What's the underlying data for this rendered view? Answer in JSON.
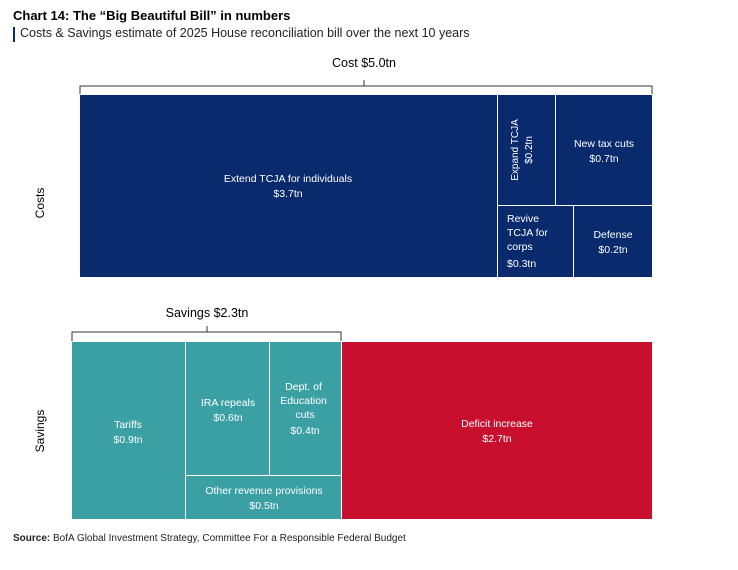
{
  "header": {
    "title": "Chart 14: The “Big Beautiful Bill” in numbers",
    "subtitle": "Costs & Savings estimate of 2025 House reconciliation bill over the next 10 years"
  },
  "footer": {
    "source_label": "Source:",
    "source_text": "BofA Global Investment Strategy, Committee For a Responsible Federal Budget"
  },
  "chart_data": {
    "type": "treemap",
    "units": "$tn",
    "colors": {
      "cost": "#0a2a6e",
      "saving": "#3aa0a3",
      "deficit": "#c8102e"
    },
    "costs": {
      "axis_label": "Costs",
      "total_label": "Cost $5.0tn",
      "total": 5.0,
      "items": [
        {
          "label": "Extend TCJA for individuals",
          "value_label": "$3.7tn",
          "value": 3.7
        },
        {
          "label": "Expand TCJA",
          "value_label": "$0.2tn",
          "value": 0.2
        },
        {
          "label": "New tax cuts",
          "value_label": "$0.7tn",
          "value": 0.7
        },
        {
          "label": "Revive TCJA for corps",
          "value_label": "$0.3tn",
          "value": 0.3
        },
        {
          "label": "Defense",
          "value_label": "$0.2tn",
          "value": 0.2
        }
      ]
    },
    "savings": {
      "axis_label": "Savings",
      "total_label": "Savings $2.3tn",
      "total": 2.3,
      "items": [
        {
          "label": "Tariffs",
          "value_label": "$0.9tn",
          "value": 0.9
        },
        {
          "label": "IRA repeals",
          "value_label": "$0.6tn",
          "value": 0.6
        },
        {
          "label": "Dept. of Education cuts",
          "value_label": "$0.4tn",
          "value": 0.4
        },
        {
          "label": "Other revenue provisions",
          "value_label": "$0.5tn",
          "value": 0.5
        }
      ]
    },
    "deficit": {
      "label": "Deficit increase",
      "value_label": "$2.7tn",
      "value": 2.7
    }
  }
}
